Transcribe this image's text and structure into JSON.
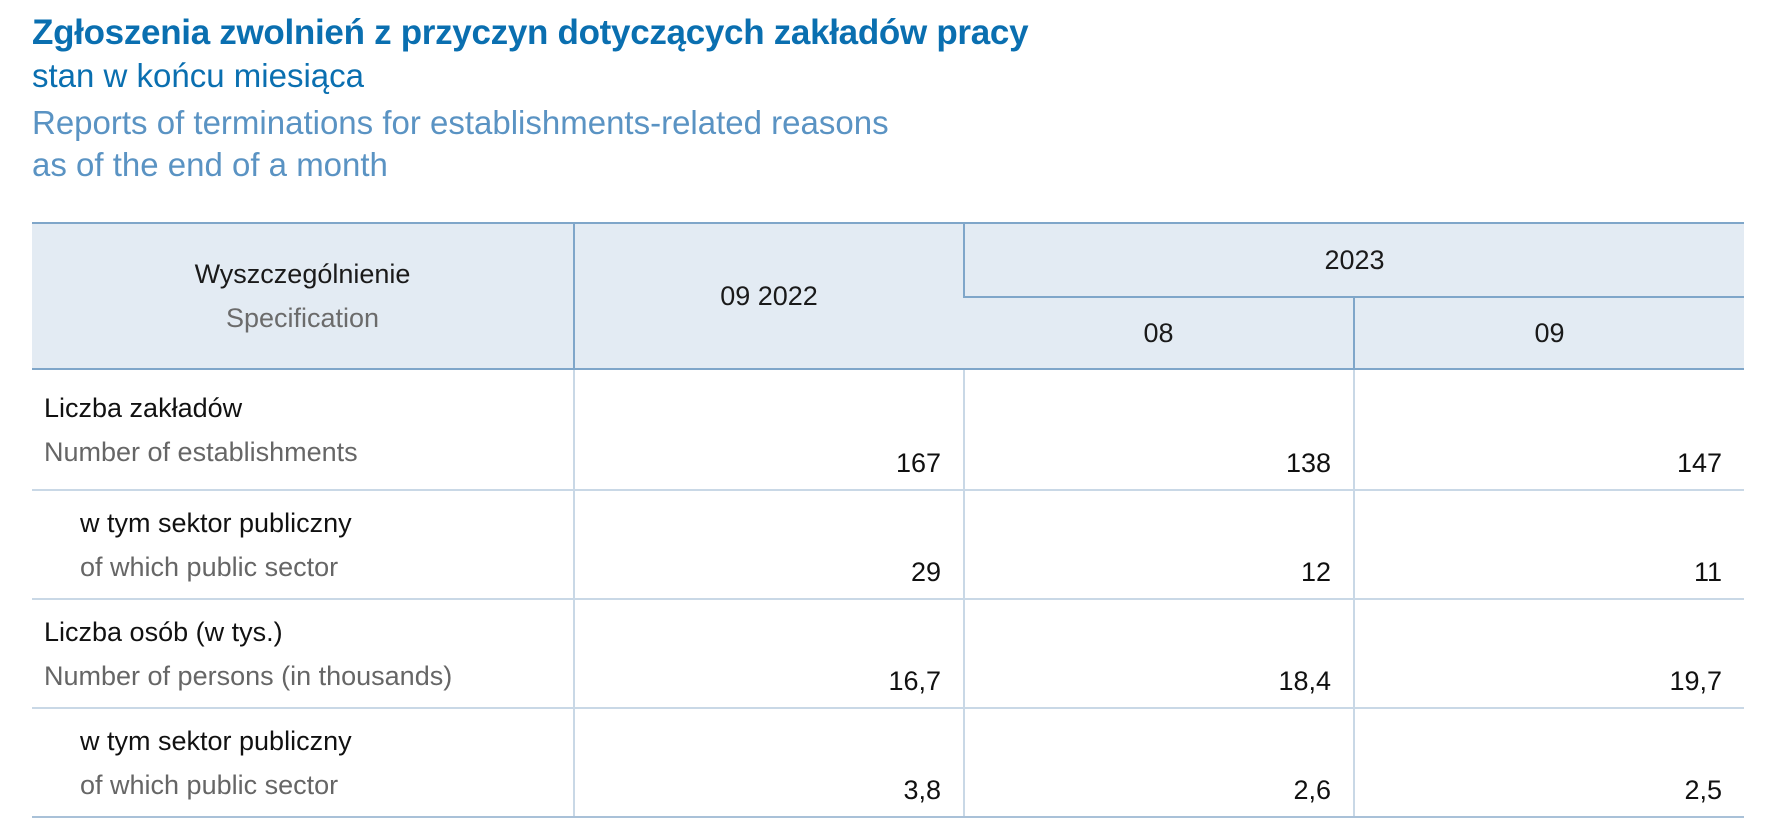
{
  "title": {
    "pl_main": "Zgłoszenia zwolnień z przyczyn dotyczących zakładów pracy",
    "pl_sub": "stan w końcu miesiąca",
    "en_line1": "Reports of terminations for establishments-related reasons",
    "en_line2": "as of the end of a month"
  },
  "table": {
    "header": {
      "spec_pl": "Wyszczególnienie",
      "spec_en": "Specification",
      "prev_period": "09 2022",
      "year": "2023",
      "months": [
        "08",
        "09"
      ]
    },
    "rows": [
      {
        "label_pl": "Liczba zakładów",
        "label_en": "Number of establishments",
        "indent": false,
        "values": [
          "167",
          "138",
          "147"
        ]
      },
      {
        "label_pl": "w tym sektor publiczny",
        "label_en": "of which public sector",
        "indent": true,
        "values": [
          "29",
          "12",
          "11"
        ]
      },
      {
        "label_pl": "Liczba osób (w tys.)",
        "label_en": "Number of persons (in thousands)",
        "indent": false,
        "values": [
          "16,7",
          "18,4",
          "19,7"
        ]
      },
      {
        "label_pl": "w tym sektor publiczny",
        "label_en": "of which public sector",
        "indent": true,
        "values": [
          "3,8",
          "2,6",
          "2,5"
        ]
      }
    ]
  }
}
